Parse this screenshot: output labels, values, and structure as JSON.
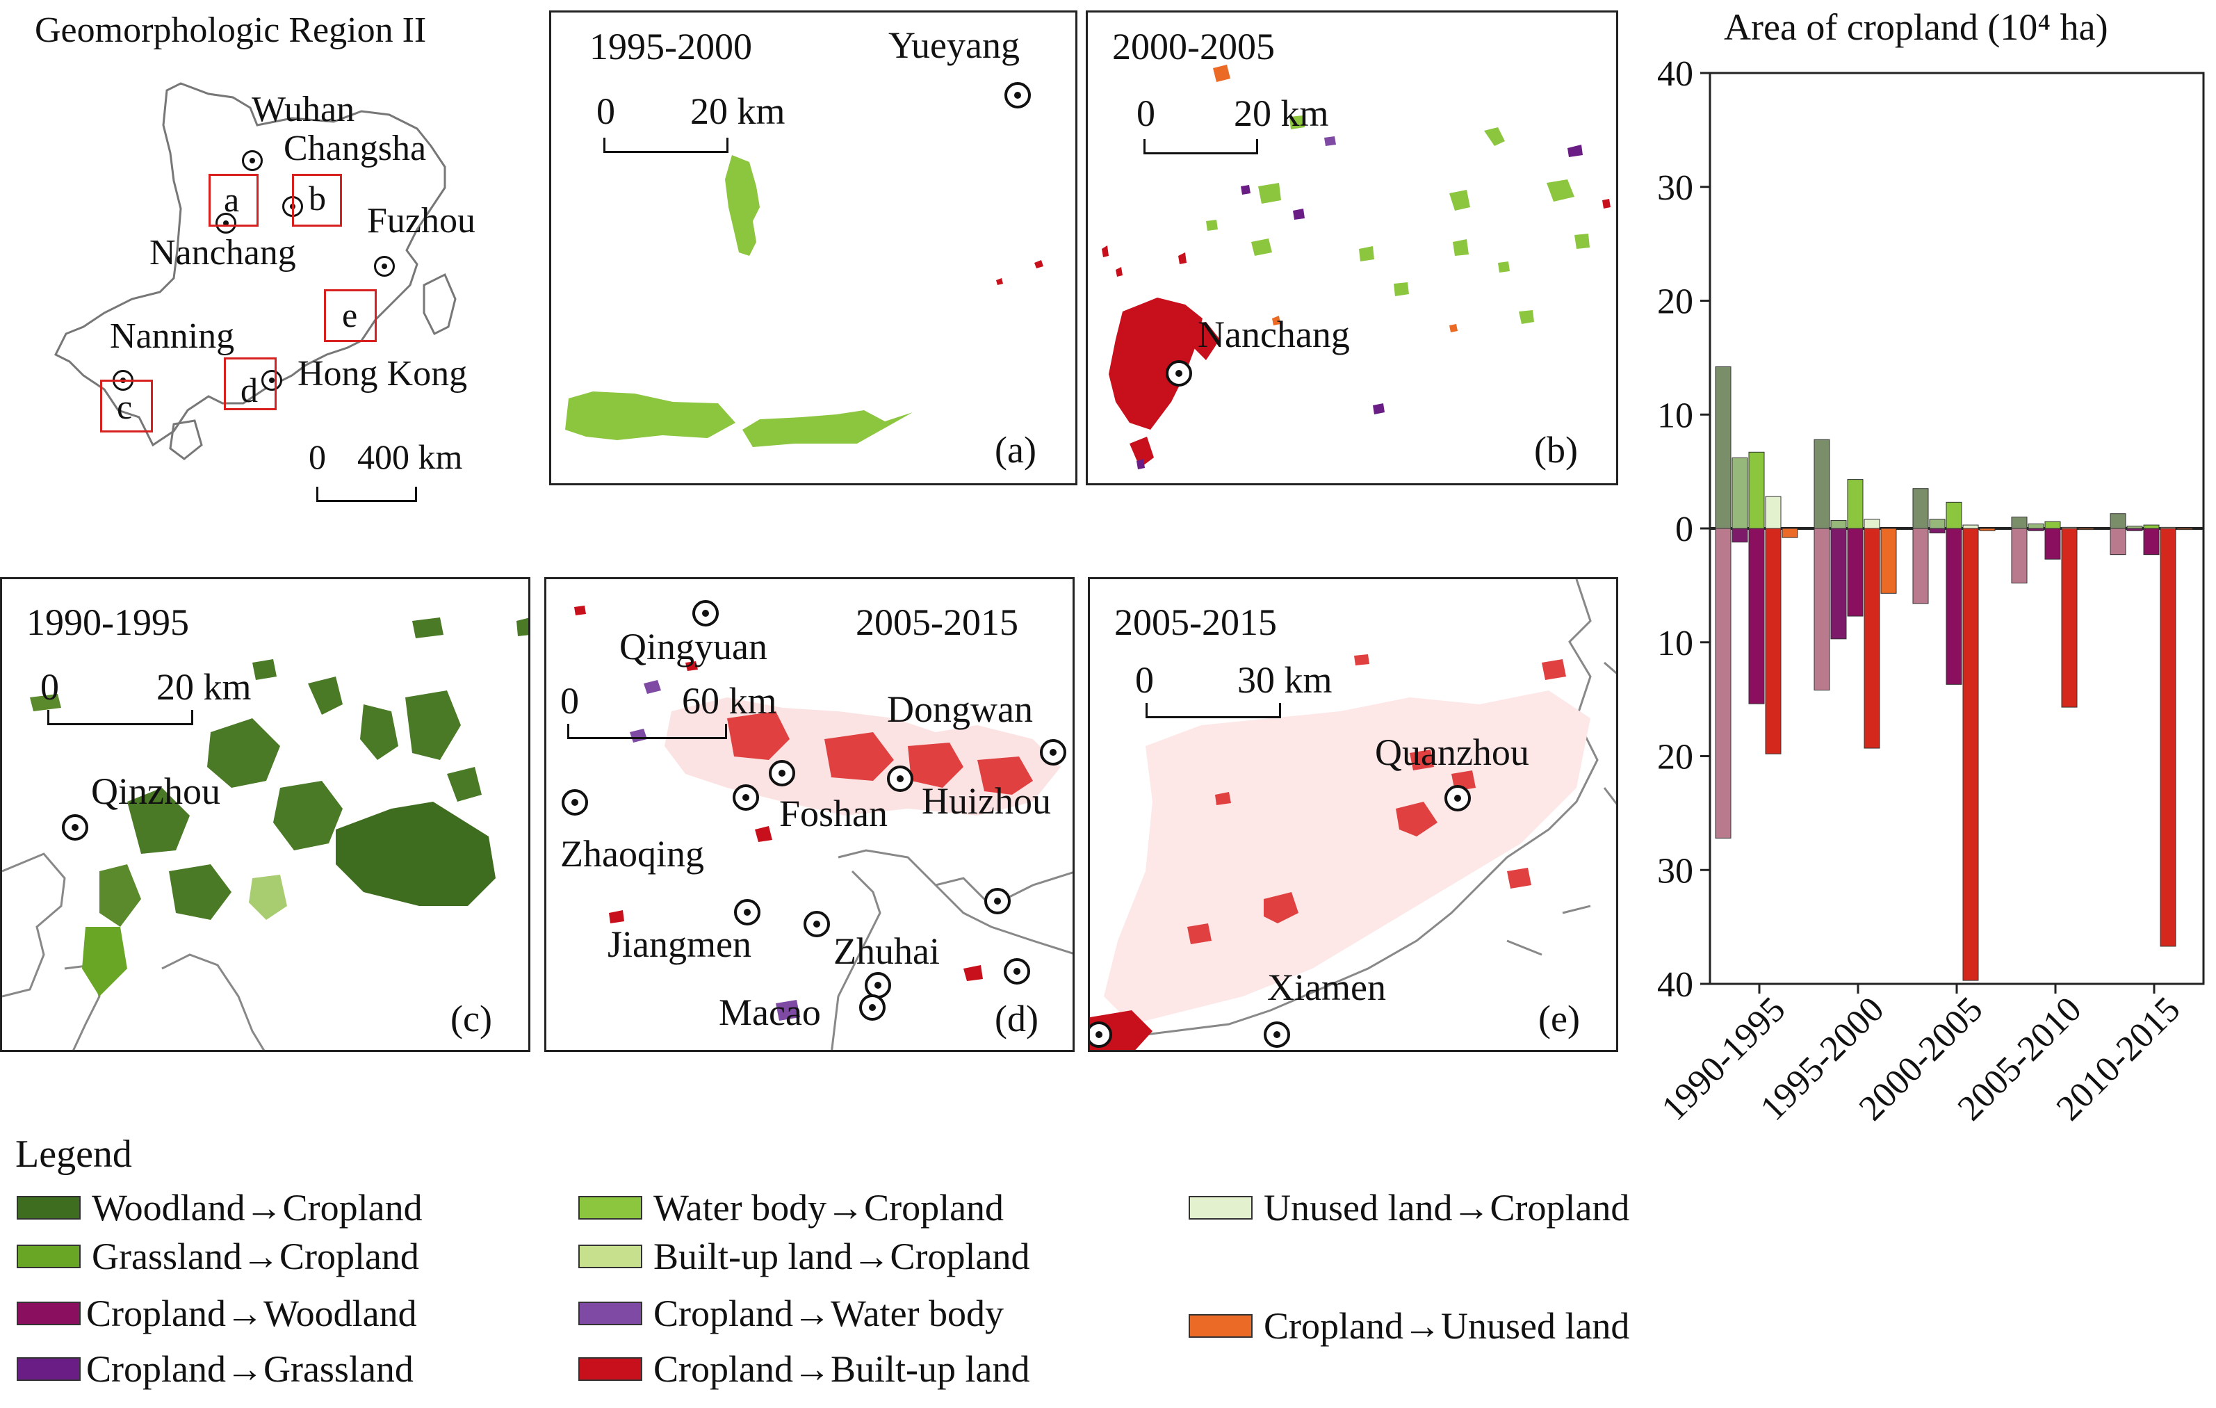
{
  "overview": {
    "title": "Geomorphologic Region II",
    "cities": [
      "Wuhan",
      "Changsha",
      "Nanchang",
      "Fuzhou",
      "Nanning",
      "Hong Kong"
    ],
    "boxes": [
      "a",
      "b",
      "c",
      "d",
      "e"
    ],
    "scale": {
      "zero": "0",
      "label": "400 km"
    }
  },
  "panels": {
    "a": {
      "period": "1995-2000",
      "tag": "(a)",
      "city": "Yueyang",
      "scale_zero": "0",
      "scale_label": "20 km"
    },
    "b": {
      "period": "2000-2005",
      "tag": "(b)",
      "city": "Nanchang",
      "scale_zero": "0",
      "scale_label": "20 km"
    },
    "c": {
      "period": "1990-1995",
      "tag": "(c)",
      "city": "Qinzhou",
      "scale_zero": "0",
      "scale_label": "20 km"
    },
    "d": {
      "period": "2005-2015",
      "tag": "(d)",
      "scale_zero": "0",
      "scale_label": "60 km",
      "cities": [
        "Qingyuan",
        "Dongwan",
        "Foshan",
        "Huizhou",
        "Zhaoqing",
        "Jiangmen",
        "Zhuhai",
        "Macao"
      ]
    },
    "e": {
      "period": "2005-2015",
      "tag": "(e)",
      "scale_zero": "0",
      "scale_label": "30 km",
      "cities": [
        "Quanzhou",
        "Xiamen"
      ]
    }
  },
  "legend": {
    "title": "Legend",
    "items": [
      {
        "label": "Woodland→Cropland",
        "color": "#3f6d1f"
      },
      {
        "label": "Grassland→Cropland",
        "color": "#6aa626"
      },
      {
        "label": "Cropland→Woodland",
        "color": "#8a0f5e"
      },
      {
        "label": "Cropland→Grassland",
        "color": "#6a1d85"
      },
      {
        "label": "Water body→Cropland",
        "color": "#8cc63f"
      },
      {
        "label": "Built-up land→Cropland",
        "color": "#c6e08e"
      },
      {
        "label": "Cropland→Water body",
        "color": "#7f4aa3"
      },
      {
        "label": "Cropland→Built-up land",
        "color": "#c8101c"
      },
      {
        "label": "Unused land→Cropland",
        "color": "#e3f1cf"
      },
      {
        "label": "Cropland→Unused land",
        "color": "#ea6a26"
      }
    ]
  },
  "chart_data": {
    "type": "bar",
    "title": "Area of cropland (10⁴ ha)",
    "categories": [
      "1990-1995",
      "1995-2000",
      "2000-2005",
      "2005-2010",
      "2010-2015"
    ],
    "ylim": [
      -40,
      40
    ],
    "y_ticks": [
      "40",
      "30",
      "20",
      "10",
      "0",
      "10",
      "20",
      "30",
      "40"
    ],
    "series": [
      {
        "name": "Woodland→Cropland",
        "color": "#7b8e6a",
        "values": [
          14.2,
          7.8,
          3.5,
          1.0,
          1.3
        ]
      },
      {
        "name": "Grassland→Cropland",
        "color": "#96b87a",
        "values": [
          6.2,
          0.7,
          0.8,
          0.4,
          0.2
        ]
      },
      {
        "name": "Water body→Cropland",
        "color": "#8cc63f",
        "values": [
          6.7,
          4.3,
          2.3,
          0.6,
          0.3
        ]
      },
      {
        "name": "Unused land→Cropland",
        "color": "#e3f1cf",
        "values": [
          2.8,
          0.8,
          0.3,
          0.1,
          0.1
        ]
      },
      {
        "name": "Cropland→Unused land",
        "color": "#ea6a26",
        "values": [
          -0.8,
          -5.7,
          -0.2,
          -0.1,
          -0.1
        ]
      },
      {
        "name": "Cropland→Woodland (pale)",
        "color": "#b87a8c",
        "values": [
          -27.2,
          -14.2,
          -6.6,
          -4.8,
          -2.3
        ]
      },
      {
        "name": "Cropland→Grassland (purple)",
        "color": "#7e1a6a",
        "values": [
          -1.2,
          -9.7,
          -0.4,
          -0.2,
          -0.2
        ]
      },
      {
        "name": "Cropland→Woodland",
        "color": "#8a0f5e",
        "values": [
          -15.4,
          -7.7,
          -13.7,
          -2.7,
          -2.3
        ]
      },
      {
        "name": "Cropland→Built-up land",
        "color": "#d3281b",
        "values": [
          -19.8,
          -19.3,
          -39.7,
          -15.7,
          -36.7
        ]
      }
    ]
  }
}
